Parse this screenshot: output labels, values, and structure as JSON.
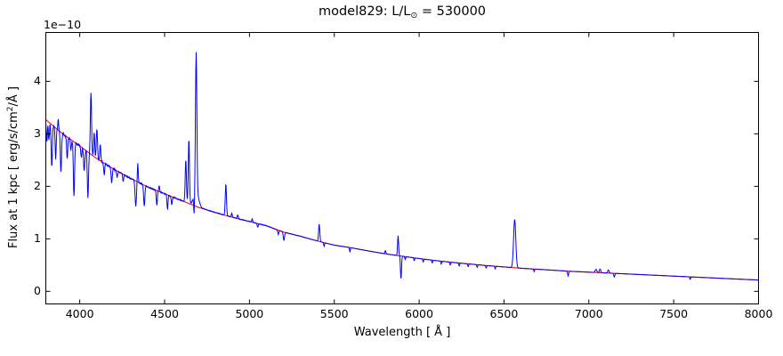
{
  "figure": {
    "title": {
      "prefix": "model829: L/L",
      "sub": "⊙",
      "suffix": " = 530000"
    },
    "xlabel": "Wavelength [ Å ]",
    "ylabel": {
      "prefix": "Flux at 1 kpc [ erg/s/cm",
      "sup": "2",
      "suffix": "/Å ]"
    },
    "offset_text": "1e−10"
  },
  "chart_data": {
    "type": "line",
    "title": "model829: L/L⊙ = 530000",
    "xlabel": "Wavelength [ Å ]",
    "ylabel": "Flux at 1 kpc [ erg/s/cm²/Å ]",
    "y_offset_factor": "1e−10",
    "flux_units": "1e-10 erg/s/cm2/A",
    "xlim": [
      3800,
      8000
    ],
    "ylim": [
      -0.24,
      4.93
    ],
    "xticks": [
      4000,
      4500,
      5000,
      5500,
      6000,
      6500,
      7000,
      7500,
      8000
    ],
    "yticks": [
      0,
      1,
      2,
      3,
      4
    ],
    "grid": false,
    "legend": null,
    "series": [
      {
        "name": "model-spectrum",
        "color": "#0000ff",
        "role": "spectrum"
      },
      {
        "name": "continuum-fit",
        "color": "#ff0000",
        "role": "continuum"
      }
    ],
    "continuum_points": [
      [
        3800,
        3.27
      ],
      [
        3900,
        3.0
      ],
      [
        4000,
        2.77
      ],
      [
        4100,
        2.53
      ],
      [
        4200,
        2.33
      ],
      [
        4300,
        2.15
      ],
      [
        4400,
        1.99
      ],
      [
        4500,
        1.86
      ],
      [
        4600,
        1.73
      ],
      [
        4700,
        1.6
      ],
      [
        4800,
        1.5
      ],
      [
        4900,
        1.41
      ],
      [
        5000,
        1.33
      ],
      [
        5100,
        1.25
      ],
      [
        5200,
        1.13
      ],
      [
        5300,
        1.05
      ],
      [
        5400,
        0.96
      ],
      [
        5500,
        0.88
      ],
      [
        5600,
        0.83
      ],
      [
        5700,
        0.77
      ],
      [
        5800,
        0.715
      ],
      [
        5900,
        0.67
      ],
      [
        6000,
        0.625
      ],
      [
        6100,
        0.585
      ],
      [
        6200,
        0.55
      ],
      [
        6300,
        0.52
      ],
      [
        6400,
        0.49
      ],
      [
        6500,
        0.465
      ],
      [
        6600,
        0.44
      ],
      [
        6700,
        0.42
      ],
      [
        6800,
        0.4
      ],
      [
        6900,
        0.38
      ],
      [
        7000,
        0.365
      ],
      [
        7100,
        0.35
      ],
      [
        7200,
        0.335
      ],
      [
        7300,
        0.32
      ],
      [
        7400,
        0.305
      ],
      [
        7500,
        0.29
      ],
      [
        7600,
        0.275
      ],
      [
        7700,
        0.26
      ],
      [
        7800,
        0.245
      ],
      [
        7900,
        0.23
      ],
      [
        8000,
        0.215
      ]
    ],
    "line_features_format": "[wavelength_A, amplitude_1e-10 (+emission/-absorption), sigma_A]",
    "line_features": [
      [
        3806,
        -0.4,
        3
      ],
      [
        3818,
        -0.35,
        3
      ],
      [
        3835,
        -0.8,
        3.5
      ],
      [
        3858,
        -0.6,
        3
      ],
      [
        3873,
        0.22,
        2.5
      ],
      [
        3889,
        -0.75,
        3.5
      ],
      [
        3926,
        -0.42,
        3
      ],
      [
        3948,
        -0.2,
        3
      ],
      [
        3966,
        -1.05,
        3.5
      ],
      [
        4009,
        -0.2,
        3
      ],
      [
        4026,
        -0.42,
        3.5
      ],
      [
        4048,
        -0.85,
        3.5
      ],
      [
        4066,
        1.18,
        3.5
      ],
      [
        4085,
        0.45,
        3
      ],
      [
        4101,
        0.58,
        3.5
      ],
      [
        4121,
        0.32,
        3
      ],
      [
        4144,
        -0.22,
        3
      ],
      [
        4188,
        -0.28,
        3.5
      ],
      [
        4220,
        -0.12,
        3
      ],
      [
        4256,
        -0.14,
        3
      ],
      [
        4330,
        -0.48,
        4
      ],
      [
        4342,
        0.35,
        2.5
      ],
      [
        4380,
        -0.4,
        3.5
      ],
      [
        4454,
        -0.28,
        3
      ],
      [
        4468,
        0.12,
        2.5
      ],
      [
        4517,
        -0.28,
        3
      ],
      [
        4542,
        -0.15,
        3
      ],
      [
        4625,
        0.82,
        3.5
      ],
      [
        4643,
        1.22,
        3.5
      ],
      [
        4674,
        -0.38,
        2.5
      ],
      [
        4686,
        2.65,
        4
      ],
      [
        4686,
        0.29,
        14
      ],
      [
        4861,
        0.6,
        3.5
      ],
      [
        4896,
        0.07,
        3
      ],
      [
        4931,
        0.07,
        3
      ],
      [
        5016,
        0.06,
        3
      ],
      [
        5049,
        -0.07,
        3
      ],
      [
        5170,
        -0.08,
        3
      ],
      [
        5203,
        -0.16,
        3.5
      ],
      [
        5411,
        0.33,
        3.5
      ],
      [
        5440,
        -0.07,
        2.5
      ],
      [
        5592,
        -0.08,
        2.5
      ],
      [
        5801,
        0.06,
        3
      ],
      [
        5876,
        0.38,
        3
      ],
      [
        5893,
        -0.44,
        3
      ],
      [
        5918,
        -0.055,
        2.5
      ],
      [
        5971,
        -0.055,
        2.5
      ],
      [
        6024,
        -0.055,
        2.5
      ],
      [
        6077,
        -0.055,
        2.5
      ],
      [
        6130,
        -0.055,
        2.5
      ],
      [
        6183,
        -0.055,
        2.5
      ],
      [
        6236,
        -0.055,
        2.5
      ],
      [
        6289,
        -0.055,
        2.5
      ],
      [
        6342,
        -0.05,
        2.5
      ],
      [
        6395,
        -0.05,
        2.5
      ],
      [
        6448,
        -0.05,
        2.5
      ],
      [
        6563,
        0.92,
        6.5
      ],
      [
        6678,
        -0.05,
        2.5
      ],
      [
        6878,
        -0.09,
        3
      ],
      [
        7042,
        0.06,
        5
      ],
      [
        7066,
        0.07,
        4
      ],
      [
        7115,
        0.06,
        4
      ],
      [
        7150,
        -0.07,
        3
      ],
      [
        7597,
        -0.05,
        2.5
      ]
    ],
    "noise": {
      "amplitude": 0.032,
      "decay_scale_A": 650
    }
  }
}
